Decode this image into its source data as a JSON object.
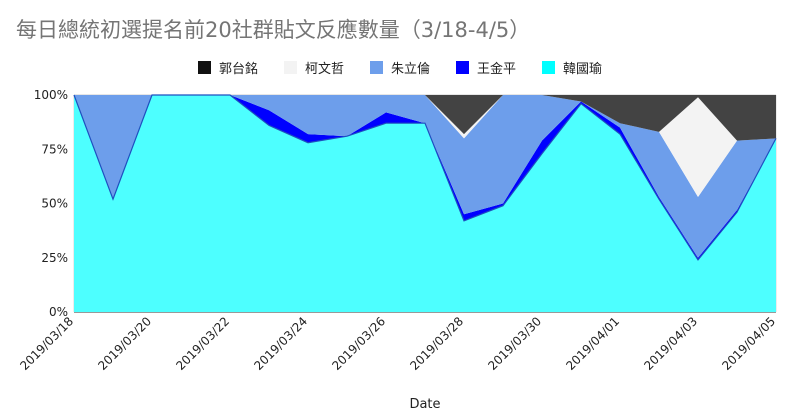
{
  "title": "每日總統初選提名前20社群貼文反應數量（3/18-4/5）",
  "chart_data": {
    "type": "area",
    "stacked_percent": true,
    "xlabel": "Date",
    "ylabel": "",
    "ylim": [
      0,
      100
    ],
    "yticks": [
      "0%",
      "25%",
      "50%",
      "75%",
      "100%"
    ],
    "x": [
      "2019/03/18",
      "2019/03/19",
      "2019/03/20",
      "2019/03/21",
      "2019/03/22",
      "2019/03/23",
      "2019/03/24",
      "2019/03/25",
      "2019/03/26",
      "2019/03/27",
      "2019/03/28",
      "2019/03/29",
      "2019/03/30",
      "2019/03/31",
      "2019/04/01",
      "2019/04/02",
      "2019/04/03",
      "2019/04/04",
      "2019/04/05"
    ],
    "x_tick_labels": [
      "2019/03/18",
      "2019/03/20",
      "2019/03/22",
      "2019/03/24",
      "2019/03/26",
      "2019/03/28",
      "2019/03/30",
      "2019/04/01",
      "2019/04/03",
      "2019/04/05"
    ],
    "grid": true,
    "legend_position": "top",
    "series": [
      {
        "name": "韓國瑜",
        "color": "#4dffff",
        "values": [
          100,
          52,
          100,
          100,
          100,
          86,
          78,
          81,
          87,
          87,
          42,
          49,
          73,
          96,
          82,
          52,
          24,
          46,
          80
        ]
      },
      {
        "name": "王金平",
        "color": "#0000ff",
        "values": [
          0,
          0,
          0,
          0,
          0,
          7,
          4,
          0,
          5,
          0,
          3,
          1,
          6,
          1,
          3,
          1,
          1,
          1,
          0
        ]
      },
      {
        "name": "朱立倫",
        "color": "#6d9eeb",
        "values": [
          0,
          48,
          0,
          0,
          0,
          7,
          18,
          19,
          8,
          13,
          35,
          50,
          21,
          0,
          2,
          30,
          28,
          32,
          0
        ]
      },
      {
        "name": "柯文哲",
        "color": "#f3f3f3",
        "values": [
          0,
          0,
          0,
          0,
          0,
          0,
          0,
          0,
          0,
          0,
          2,
          0,
          0,
          0,
          0,
          0,
          46,
          0,
          0
        ]
      },
      {
        "name": "郭台銘",
        "color": "#434343",
        "values": [
          0,
          0,
          0,
          0,
          0,
          0,
          0,
          0,
          0,
          0,
          18,
          0,
          0,
          3,
          13,
          17,
          1,
          21,
          20
        ]
      }
    ],
    "legend_order": [
      "郭台銘",
      "柯文哲",
      "朱立倫",
      "王金平",
      "韓國瑜"
    ]
  }
}
